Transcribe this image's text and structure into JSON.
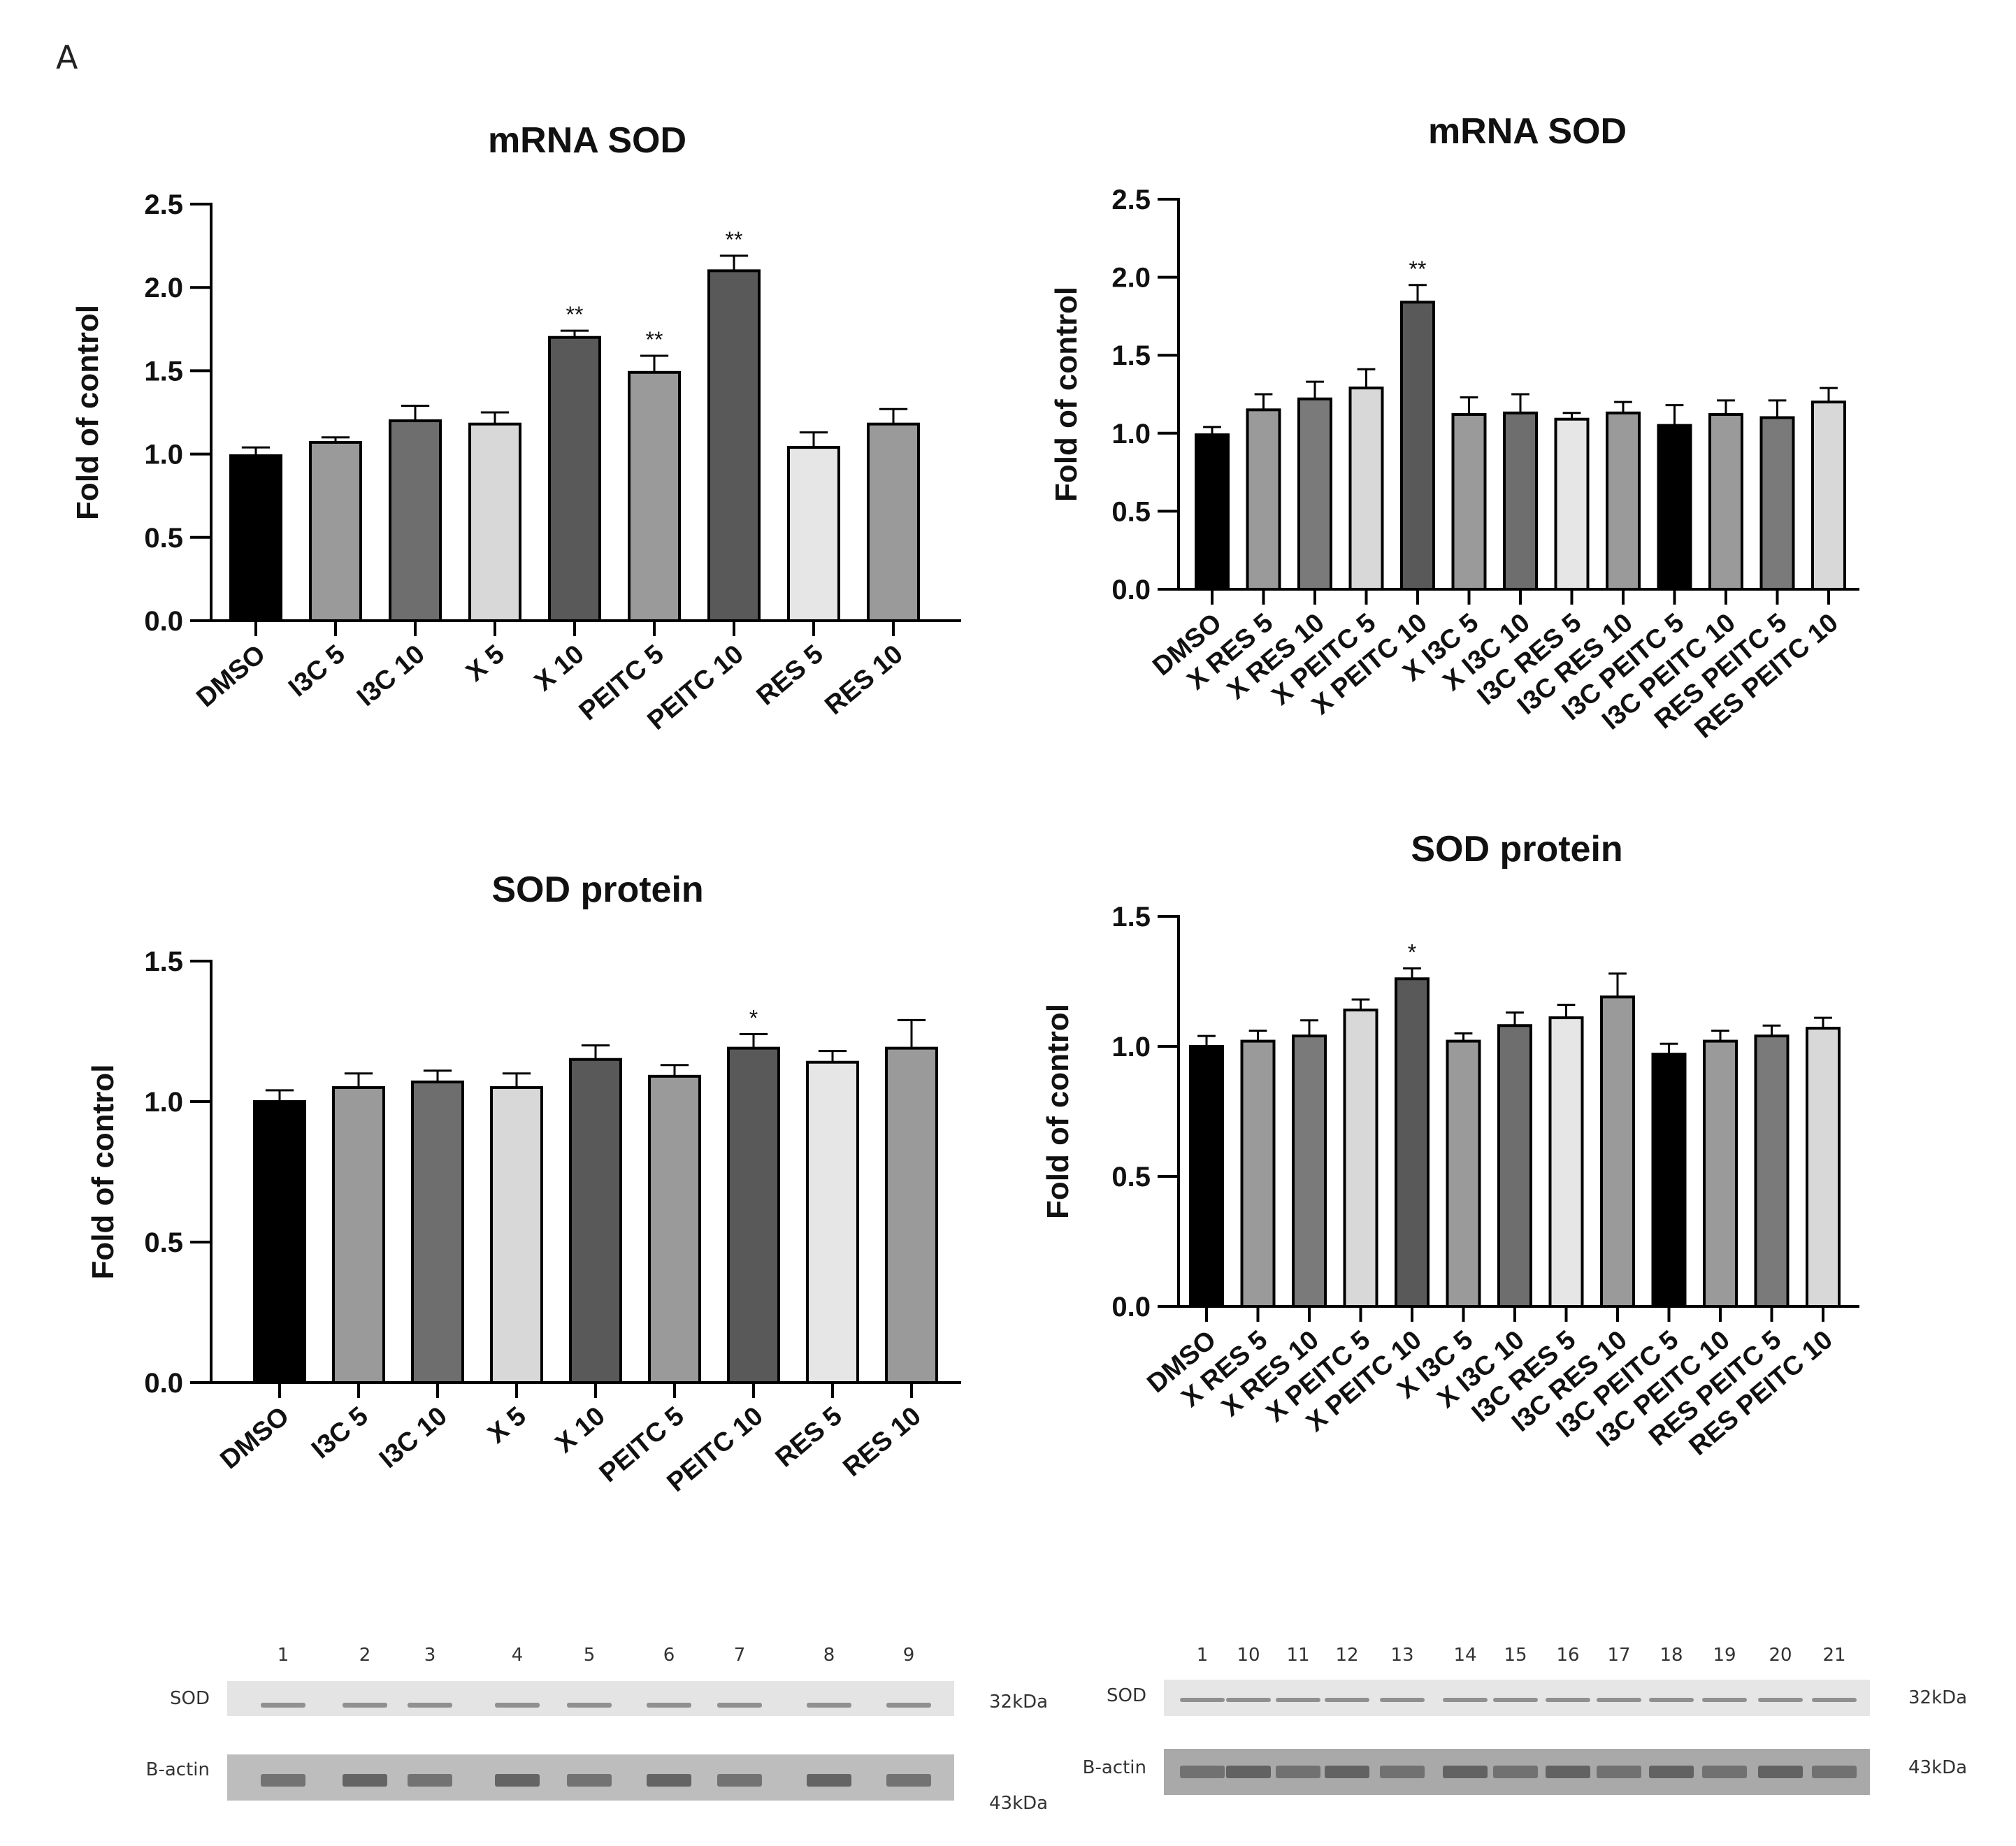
{
  "figure_label": "A",
  "colors": {
    "black": "#000000",
    "mid_gray": "#9a9a9a",
    "dark_gray": "#6e6e6e",
    "light_gray": "#d8d8d8",
    "darker_gray": "#595959",
    "lightest_gray": "#e6e6e6"
  },
  "chart_data": [
    {
      "id": "mrna-single",
      "type": "bar",
      "title": "mRNA SOD",
      "ylabel": "Fold of control",
      "xlabel": "",
      "ylim": [
        0,
        2.5
      ],
      "yticks": [
        "0.0",
        "0.5",
        "1.0",
        "1.5",
        "2.0",
        "2.5"
      ],
      "categories": [
        "DMSO",
        "I3C 5",
        "I3C 10",
        "X 5",
        "X 10",
        "PEITC 5",
        "PEITC 10",
        "RES 5",
        "RES 10"
      ],
      "values": [
        0.99,
        1.07,
        1.2,
        1.18,
        1.7,
        1.49,
        2.1,
        1.04,
        1.18
      ],
      "errors": [
        0.05,
        0.03,
        0.09,
        0.07,
        0.04,
        0.1,
        0.09,
        0.09,
        0.09
      ],
      "significance": [
        "",
        "",
        "",
        "",
        "**",
        "**",
        "**",
        "",
        ""
      ],
      "bar_colors": [
        "#000000",
        "#9a9a9a",
        "#6e6e6e",
        "#d8d8d8",
        "#595959",
        "#9a9a9a",
        "#595959",
        "#e6e6e6",
        "#9a9a9a"
      ]
    },
    {
      "id": "mrna-combo",
      "type": "bar",
      "title": "mRNA SOD",
      "ylabel": "Fold of control",
      "xlabel": "",
      "ylim": [
        0,
        2.5
      ],
      "yticks": [
        "0.0",
        "0.5",
        "1.0",
        "1.5",
        "2.0",
        "2.5"
      ],
      "categories": [
        "DMSO",
        "X RES 5",
        "X RES 10",
        "X PEITC 5",
        "X PEITC 10",
        "X I3C 5",
        "X I3C 10",
        "I3C RES 5",
        "I3C RES 10",
        "I3C PEITC 5",
        "I3C PEITC 10",
        "RES PEITC 5",
        "RES PEITC 10"
      ],
      "values": [
        0.99,
        1.15,
        1.22,
        1.29,
        1.84,
        1.12,
        1.13,
        1.09,
        1.13,
        1.05,
        1.12,
        1.1,
        1.2
      ],
      "errors": [
        0.05,
        0.1,
        0.11,
        0.12,
        0.11,
        0.11,
        0.12,
        0.04,
        0.07,
        0.13,
        0.09,
        0.11,
        0.09
      ],
      "significance": [
        "",
        "",
        "",
        "",
        "**",
        "",
        "",
        "",
        "",
        "",
        "",
        "",
        ""
      ],
      "bar_colors": [
        "#000000",
        "#9a9a9a",
        "#7a7a7a",
        "#d8d8d8",
        "#595959",
        "#9a9a9a",
        "#6e6e6e",
        "#e6e6e6",
        "#9a9a9a",
        "#000000",
        "#9a9a9a",
        "#7a7a7a",
        "#d8d8d8"
      ]
    },
    {
      "id": "protein-single",
      "type": "bar",
      "title": "SOD protein",
      "ylabel": "Fold of control",
      "xlabel": "",
      "ylim": [
        0,
        1.5
      ],
      "yticks": [
        "0.0",
        "0.5",
        "1.0",
        "1.5"
      ],
      "categories": [
        "DMSO",
        "I3C 5",
        "I3C 10",
        "X 5",
        "X 10",
        "PEITC 5",
        "PEITC 10",
        "RES 5",
        "RES 10"
      ],
      "values": [
        1.0,
        1.05,
        1.07,
        1.05,
        1.15,
        1.09,
        1.19,
        1.14,
        1.19
      ],
      "errors": [
        0.04,
        0.05,
        0.04,
        0.05,
        0.05,
        0.04,
        0.05,
        0.04,
        0.1
      ],
      "significance": [
        "",
        "",
        "",
        "",
        "",
        "",
        "*",
        "",
        ""
      ],
      "bar_colors": [
        "#000000",
        "#9a9a9a",
        "#6e6e6e",
        "#d8d8d8",
        "#595959",
        "#9a9a9a",
        "#595959",
        "#e6e6e6",
        "#9a9a9a"
      ]
    },
    {
      "id": "protein-combo",
      "type": "bar",
      "title": "SOD protein",
      "ylabel": "Fold of control",
      "xlabel": "",
      "ylim": [
        0,
        1.5
      ],
      "yticks": [
        "0.0",
        "0.5",
        "1.0",
        "1.5"
      ],
      "categories": [
        "DMSO",
        "X RES 5",
        "X RES 10",
        "X PEITC 5",
        "X PEITC 10",
        "X I3C 5",
        "X I3C 10",
        "I3C RES 5",
        "I3C RES 10",
        "I3C PEITC 5",
        "I3C PEITC 10",
        "RES PEITC 5",
        "RES PEITC 10"
      ],
      "values": [
        1.0,
        1.02,
        1.04,
        1.14,
        1.26,
        1.02,
        1.08,
        1.11,
        1.19,
        0.97,
        1.02,
        1.04,
        1.07
      ],
      "errors": [
        0.04,
        0.04,
        0.06,
        0.04,
        0.04,
        0.03,
        0.05,
        0.05,
        0.09,
        0.04,
        0.04,
        0.04,
        0.04
      ],
      "significance": [
        "",
        "",
        "",
        "",
        "*",
        "",
        "",
        "",
        "",
        "",
        "",
        "",
        ""
      ],
      "bar_colors": [
        "#000000",
        "#9a9a9a",
        "#7a7a7a",
        "#d8d8d8",
        "#595959",
        "#9a9a9a",
        "#6e6e6e",
        "#e6e6e6",
        "#9a9a9a",
        "#000000",
        "#9a9a9a",
        "#7a7a7a",
        "#d8d8d8"
      ]
    }
  ],
  "western_blots": [
    {
      "id": "blot-left",
      "lanes": [
        "1",
        "2",
        "3",
        "4",
        "5",
        "6",
        "7",
        "8",
        "9"
      ],
      "rows": [
        {
          "label": "SOD",
          "kda": "32kDa"
        },
        {
          "label": "B-actin",
          "kda": "43kDa"
        }
      ]
    },
    {
      "id": "blot-right",
      "lanes": [
        "1",
        "10",
        "11",
        "12",
        "13",
        "14",
        "15",
        "16",
        "17",
        "18",
        "19",
        "20",
        "21"
      ],
      "rows": [
        {
          "label": "SOD",
          "kda": "32kDa"
        },
        {
          "label": "B-actin",
          "kda": "43kDa"
        }
      ]
    }
  ]
}
